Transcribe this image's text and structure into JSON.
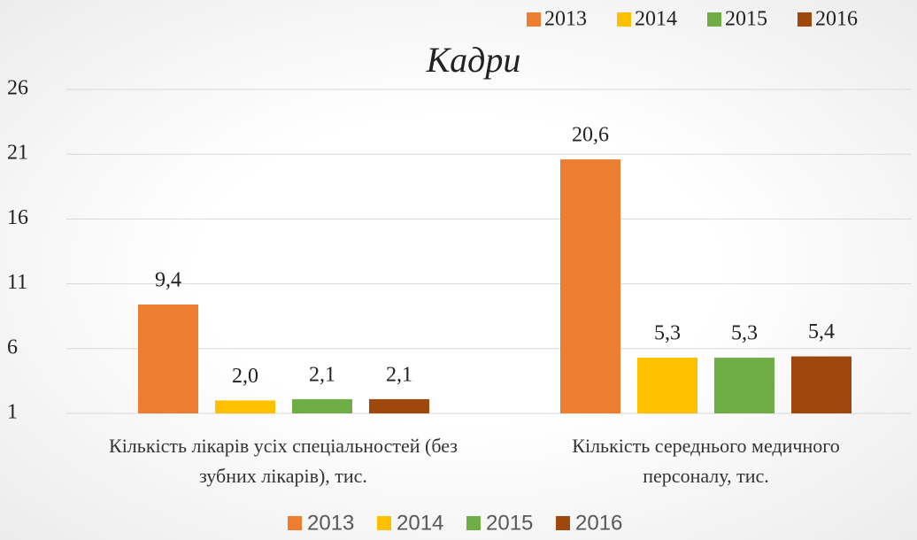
{
  "chart_data": {
    "type": "bar",
    "title": "Кадри",
    "categories": [
      "Кількість лікарів усіх спеціальностей (без зубних лікарів), тис.",
      "Кількість середнього медичного персоналу, тис."
    ],
    "series": [
      {
        "name": "2013",
        "color": "#ed7d31",
        "values": [
          9.4,
          20.6
        ],
        "value_labels": [
          "9,4",
          "20,6"
        ]
      },
      {
        "name": "2014",
        "color": "#ffc000",
        "values": [
          2.0,
          5.3
        ],
        "value_labels": [
          "2,0",
          "5,3"
        ]
      },
      {
        "name": "2015",
        "color": "#70ad47",
        "values": [
          2.1,
          5.3
        ],
        "value_labels": [
          "2,1",
          "5,3"
        ]
      },
      {
        "name": "2016",
        "color": "#9e480e",
        "values": [
          2.1,
          5.4
        ],
        "value_labels": [
          "2,1",
          "5,4"
        ]
      }
    ],
    "ylim": [
      1,
      26
    ],
    "yticks": [
      1,
      6,
      11,
      16,
      21,
      26
    ],
    "grid": true
  }
}
